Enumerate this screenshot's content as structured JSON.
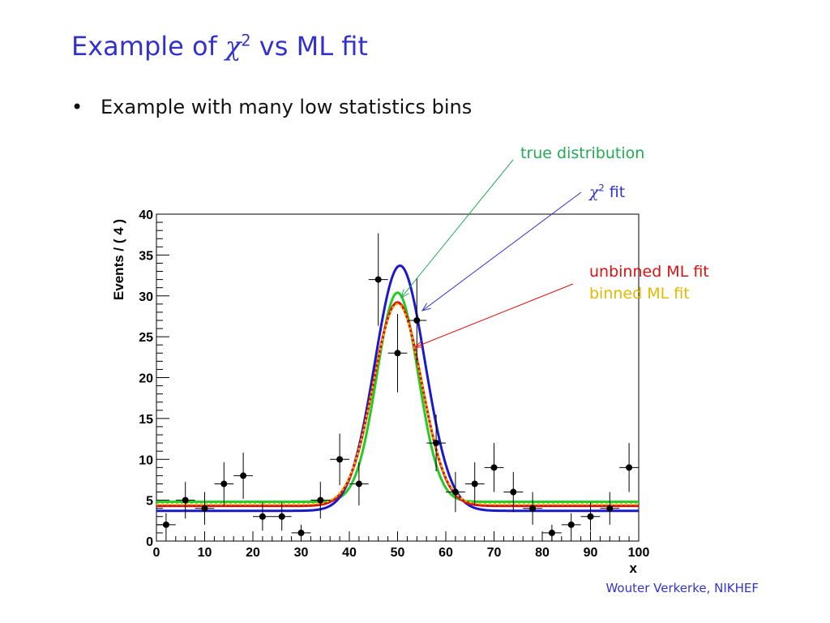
{
  "slide": {
    "title_prefix": "Example of ",
    "title_chi": "χ",
    "title_sup": "2",
    "title_suffix": " vs ML fit",
    "bullet_char": "•",
    "bullet_text": "Example with many low statistics bins",
    "footer": "Wouter Verkerke, NIKHEF"
  },
  "annotations": {
    "true_dist": "true distribution",
    "chi_symbol": "χ",
    "chi_sup": "2",
    "chi_fit_suffix": " fit",
    "unbinned": "unbinned ML fit",
    "binned": "binned ML fit"
  },
  "colors": {
    "title": "#3333cc",
    "true_distribution": "#22cc22",
    "chi2_fit": "#1a1acc",
    "unbinned_ml": "#dd1111",
    "binned_ml": "#e6b800",
    "annotation_true": "#22aa55",
    "annotation_chi2": "#3333cc",
    "annotation_unbinned": "#dd1111",
    "annotation_binned": "#e6b800"
  },
  "chart_data": {
    "type": "scatter",
    "xlabel": "x",
    "ylabel": "Events / ( 4 )",
    "xlim": [
      0,
      100
    ],
    "ylim": [
      0,
      40
    ],
    "xticks": [
      0,
      10,
      20,
      30,
      40,
      50,
      60,
      70,
      80,
      90,
      100
    ],
    "yticks": [
      0,
      5,
      10,
      15,
      20,
      25,
      30,
      35,
      40
    ],
    "x_bin_half_width": 2,
    "points": {
      "x": [
        2,
        6,
        10,
        14,
        18,
        22,
        26,
        30,
        34,
        38,
        42,
        46,
        50,
        54,
        58,
        62,
        66,
        70,
        74,
        78,
        82,
        86,
        90,
        94,
        98
      ],
      "y": [
        2,
        5,
        4,
        7,
        8,
        3,
        3,
        1,
        5,
        10,
        7,
        32,
        23,
        27,
        12,
        6,
        7,
        9,
        6,
        4,
        1,
        2,
        3,
        4,
        9
      ]
    },
    "curves": [
      {
        "name": "true distribution",
        "color_key": "true_distribution",
        "baseline": 4.8,
        "peak": 30.4,
        "mean": 50,
        "sigma": 4.3
      },
      {
        "name": "χ2 fit",
        "color_key": "chi2_fit",
        "baseline": 3.7,
        "peak": 33.7,
        "mean": 50.5,
        "sigma": 5.2
      },
      {
        "name": "unbinned ML fit",
        "color_key": "unbinned_ml",
        "baseline": 4.3,
        "peak": 29.2,
        "mean": 50,
        "sigma": 5.0
      },
      {
        "name": "binned ML fit",
        "color_key": "binned_ml",
        "baseline": 4.5,
        "peak": 29.0,
        "mean": 50,
        "sigma": 5.0
      }
    ]
  }
}
